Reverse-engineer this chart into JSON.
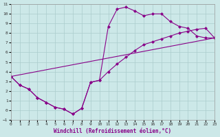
{
  "xlabel": "Windchill (Refroidissement éolien,°C)",
  "bg_color": "#cce8e8",
  "grid_color": "#aacccc",
  "line_color": "#880088",
  "line1_x": [
    0,
    1,
    2,
    3,
    4,
    5,
    6,
    7,
    8,
    9,
    10,
    11,
    12,
    13,
    14,
    15,
    16,
    17,
    18,
    19,
    20,
    21,
    22,
    23
  ],
  "line1_y": [
    3.5,
    2.6,
    2.2,
    1.3,
    0.8,
    0.3,
    0.1,
    -0.4,
    0.2,
    2.9,
    3.1,
    8.7,
    10.5,
    10.7,
    10.3,
    9.8,
    10.0,
    10.0,
    9.2,
    8.7,
    8.5,
    7.7,
    7.5,
    7.5
  ],
  "line2_x": [
    0,
    1,
    2,
    3,
    4,
    5,
    6,
    7,
    8,
    9,
    10,
    11,
    12,
    13,
    14,
    15,
    16,
    17,
    18,
    19,
    20,
    21,
    22,
    23
  ],
  "line2_y": [
    3.5,
    2.6,
    2.2,
    1.3,
    0.8,
    0.3,
    0.1,
    -0.4,
    0.2,
    2.9,
    3.1,
    4.0,
    4.8,
    5.5,
    6.2,
    6.8,
    7.1,
    7.4,
    7.7,
    8.0,
    8.2,
    8.4,
    8.5,
    7.5
  ],
  "line3_x": [
    0,
    23
  ],
  "line3_y": [
    3.5,
    7.5
  ],
  "ylim": [
    -1,
    11
  ],
  "xlim": [
    0,
    23
  ],
  "yticks": [
    -1,
    0,
    1,
    2,
    3,
    4,
    5,
    6,
    7,
    8,
    9,
    10,
    11
  ],
  "xticks": [
    0,
    1,
    2,
    3,
    4,
    5,
    6,
    7,
    8,
    9,
    10,
    11,
    12,
    13,
    14,
    15,
    16,
    17,
    18,
    19,
    20,
    21,
    22,
    23
  ]
}
